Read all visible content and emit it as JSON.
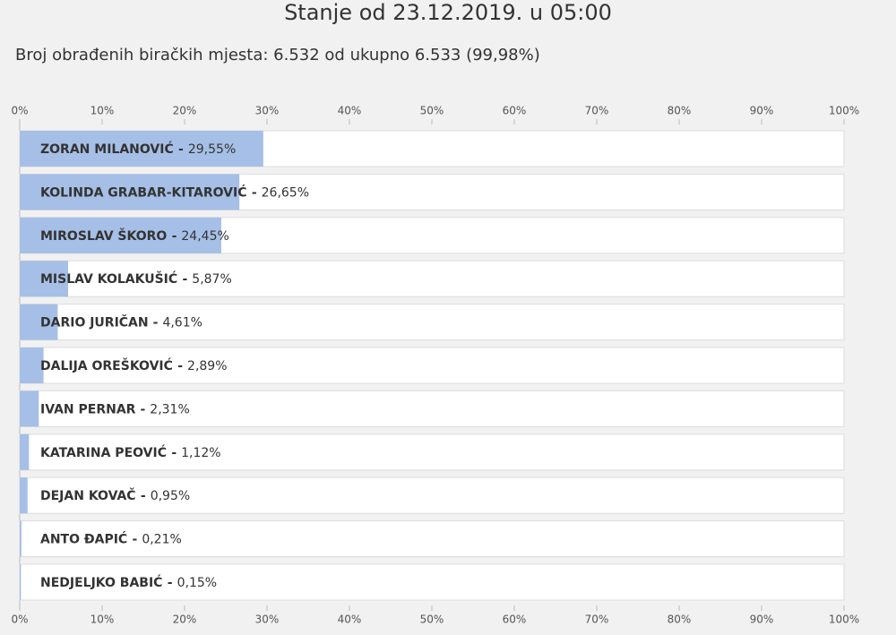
{
  "chart_data": {
    "type": "bar",
    "orientation": "horizontal",
    "title": "Stanje od 23.12.2019. u 05:00",
    "subtitle": "Broj obrađenih biračkih mjesta: 6.532 od ukupno 6.533 (99,98%)",
    "separator": "-",
    "categories": [
      "ZORAN MILANOVIĆ",
      "KOLINDA GRABAR-KITAROVIĆ",
      "MIROSLAV ŠKORO",
      "MISLAV KOLAKUŠIĆ",
      "DARIO JURIČAN",
      "DALIJA OREŠKOVIĆ",
      "IVAN PERNAR",
      "KATARINA PEOVIĆ",
      "DEJAN KOVAČ",
      "ANTO ĐAPIĆ",
      "NEDJELJKO BABIĆ"
    ],
    "values": [
      29.55,
      26.65,
      24.45,
      5.87,
      4.61,
      2.89,
      2.31,
      1.12,
      0.95,
      0.21,
      0.15
    ],
    "value_labels": [
      "29,55%",
      "26,65%",
      "24,45%",
      "5,87%",
      "4,61%",
      "2,89%",
      "2,31%",
      "1,12%",
      "0,95%",
      "0,21%",
      "0,15%"
    ],
    "color": "#a6bfe6",
    "xlim": [
      0,
      100
    ],
    "xticks": [
      {
        "value": 0,
        "label": "0%"
      },
      {
        "value": 10,
        "label": "10%"
      },
      {
        "value": 20,
        "label": "20%"
      },
      {
        "value": 30,
        "label": "30%"
      },
      {
        "value": 40,
        "label": "40%"
      },
      {
        "value": 50,
        "label": "50%"
      },
      {
        "value": 60,
        "label": "60%"
      },
      {
        "value": 70,
        "label": "70%"
      },
      {
        "value": 80,
        "label": "80%"
      },
      {
        "value": 90,
        "label": "90%"
      },
      {
        "value": 100,
        "label": "100%"
      }
    ]
  }
}
